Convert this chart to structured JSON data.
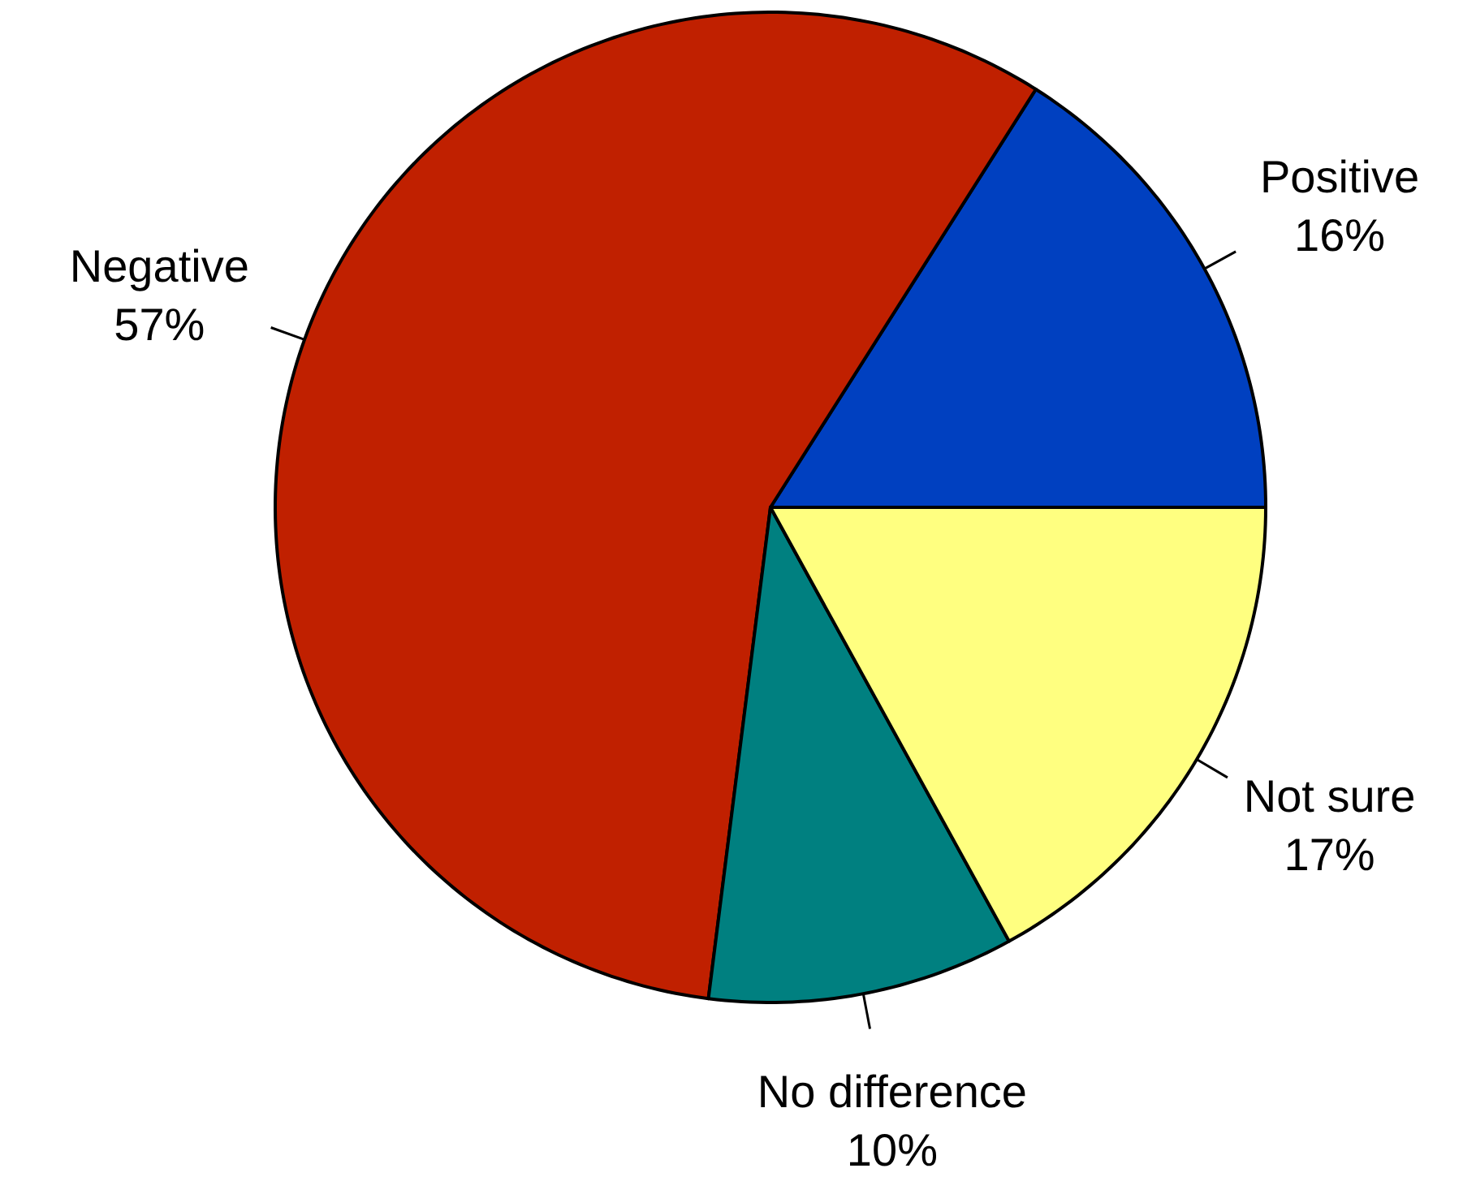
{
  "chart_data": {
    "type": "pie",
    "categories": [
      "Positive",
      "Negative",
      "No difference",
      "Not sure"
    ],
    "values": [
      16,
      57,
      10,
      17
    ],
    "value_labels": [
      "16%",
      "57%",
      "10%",
      "17%"
    ],
    "colors": [
      "#0040c0",
      "#c02000",
      "#008080",
      "#ffff80"
    ]
  }
}
